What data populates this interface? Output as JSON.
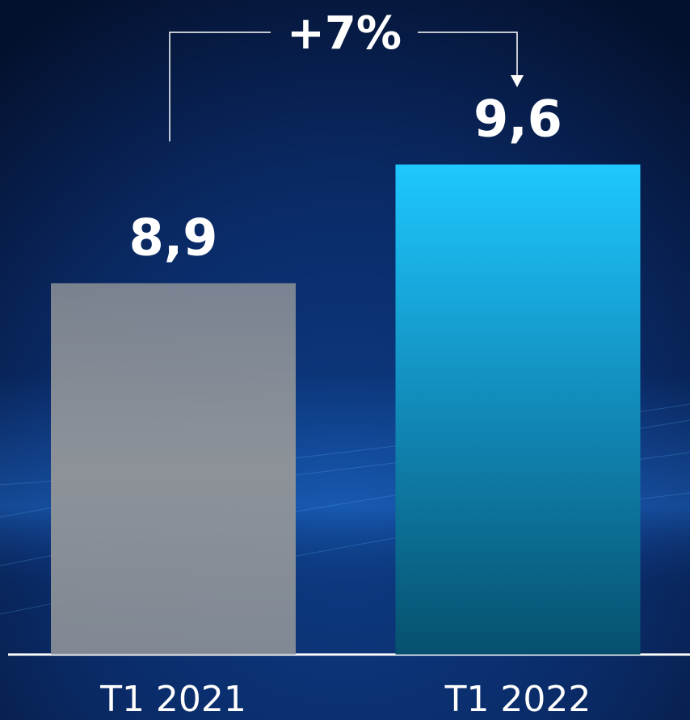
{
  "chart_data": {
    "type": "bar",
    "categories": [
      "T1 2021",
      "T1 2022"
    ],
    "values": [
      8.9,
      9.6
    ],
    "value_labels": [
      "8,9",
      "9,6"
    ],
    "colors": [
      "#8d9298",
      "#1390c0"
    ],
    "ylim": [
      6.71,
      10.57
    ],
    "annotation": "+7%"
  }
}
